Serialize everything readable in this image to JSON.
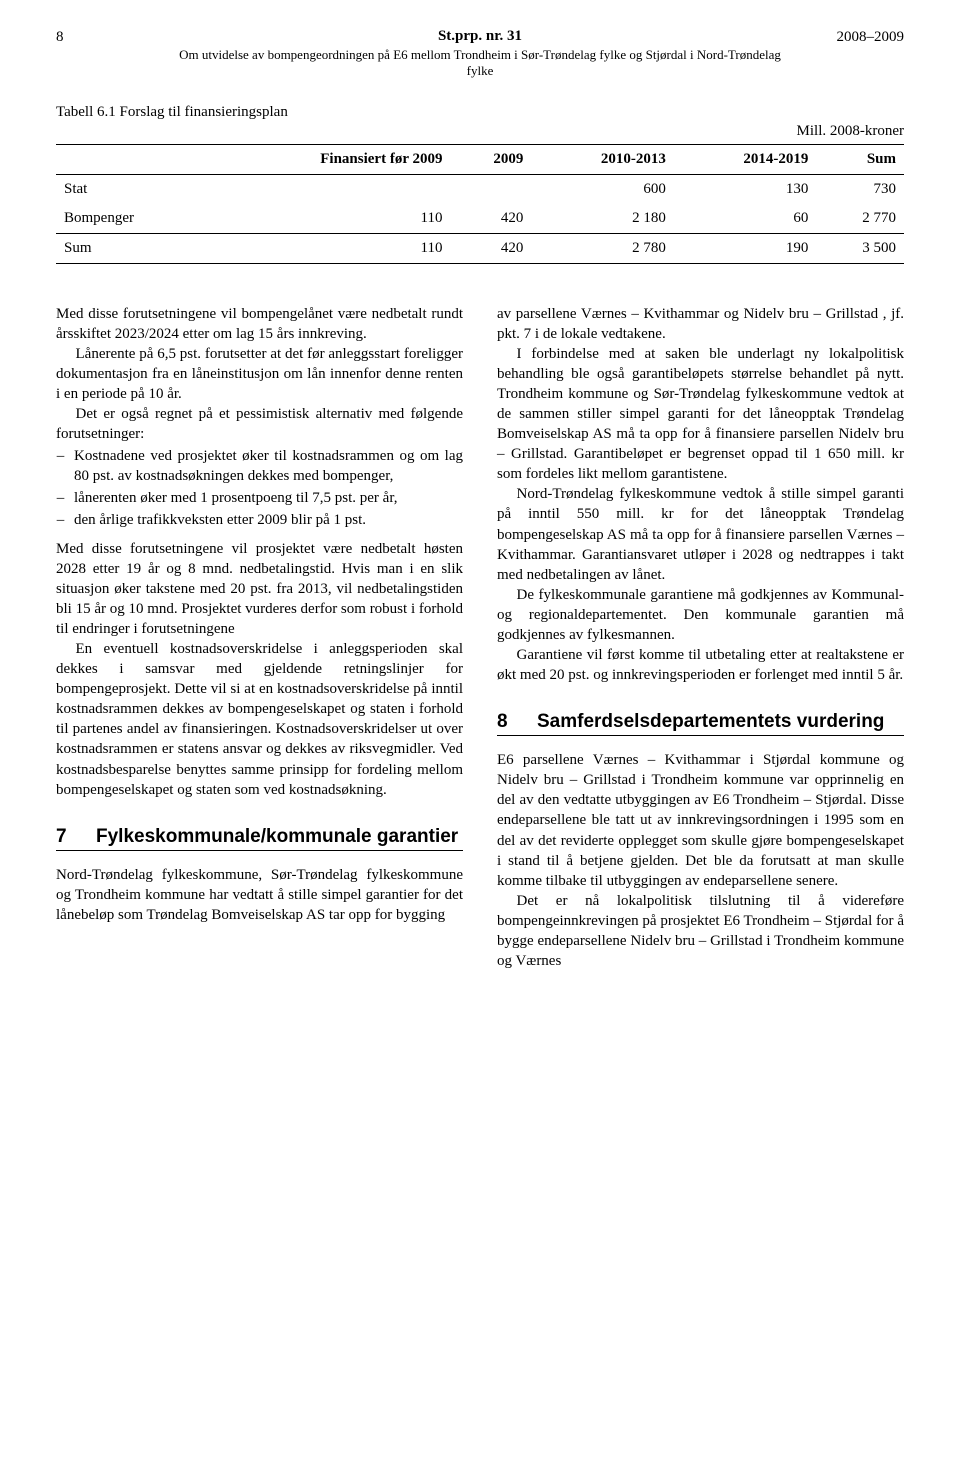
{
  "header": {
    "page_number": "8",
    "doc_ref": "St.prp. nr. 31",
    "years": "2008–2009",
    "subtitle": "Om utvidelse av bompengeordningen på E6 mellom Trondheim i Sør-Trøndelag fylke og Stjørdal i Nord-Trøndelag fylke"
  },
  "table": {
    "caption": "Tabell 6.1  Forslag til finansieringsplan",
    "unit": "Mill. 2008-kroner",
    "columns": [
      "",
      "Finansiert før 2009",
      "2009",
      "2010-2013",
      "2014-2019",
      "Sum"
    ],
    "rows": [
      [
        "Stat",
        "",
        "",
        "600",
        "130",
        "730"
      ],
      [
        "Bompenger",
        "110",
        "420",
        "2 180",
        "60",
        "2 770"
      ]
    ],
    "sum_row": [
      "Sum",
      "110",
      "420",
      "2 780",
      "190",
      "3 500"
    ],
    "font_size": 15,
    "border_color": "#000000"
  },
  "left_column": {
    "p1": "Med disse forutsetningene vil bompengelånet være nedbetalt rundt årsskiftet 2023/2024 etter om lag 15 års innkreving.",
    "p2": "Lånerente på 6,5 pst. forutsetter at det før anleggsstart foreligger dokumentasjon fra en låneinstitusjon om lån innenfor denne renten i en periode på 10 år.",
    "p3": "Det er også regnet på et pessimistisk alternativ med følgende forutsetninger:",
    "bullets": [
      "Kostnadene ved prosjektet øker til kostnadsrammen og om lag 80 pst. av kostnadsøkningen dekkes med bompenger,",
      "lånerenten øker med 1 prosentpoeng til 7,5 pst. per år,",
      "den årlige trafikkveksten etter 2009 blir på 1 pst."
    ],
    "p4": "Med disse forutsetningene vil prosjektet være nedbetalt høsten 2028 etter 19 år og 8 mnd. nedbetalingstid. Hvis man i en slik situasjon øker takstene med 20 pst. fra 2013, vil nedbetalingstiden bli 15 år og 10 mnd. Prosjektet vurderes derfor som robust i forhold til endringer i forutsetningene",
    "p5": "En eventuell kostnadsoverskridelse i anleggsperioden skal dekkes i samsvar med gjeldende retningslinjer for bompengeprosjekt. Dette vil si at en kostnadsoverskridelse på inntil kostnadsrammen dekkes av bompengeselskapet og staten i forhold til partenes andel av finansieringen. Kostnadsoverskridelser ut over kostnadsrammen er statens ansvar og dekkes av riksvegmidler. Ved kostnadsbesparelse benyttes samme prinsipp for fordeling mellom bompengeselskapet og staten som ved kostnadsøkning.",
    "section7_num": "7",
    "section7_title": "Fylkeskommunale/kommunale garantier",
    "p6": "Nord-Trøndelag fylkeskommune, Sør-Trøndelag fylkeskommune og Trondheim kommune har vedtatt å stille simpel garantier for det lånebeløp som Trøndelag Bomveiselskap AS tar opp for bygging"
  },
  "right_column": {
    "p1": "av parsellene Værnes – Kvithammar og Nidelv bru – Grillstad , jf. pkt. 7 i de lokale vedtakene.",
    "p2": "I forbindelse med at saken ble underlagt ny lokalpolitisk behandling ble også garantibeløpets størrelse behandlet på nytt. Trondheim kommune og Sør-Trøndelag fylkeskommune vedtok at de sammen stiller simpel garanti for det låneopptak Trøndelag Bomveiselskap AS må ta opp for å finansiere parsellen Nidelv bru – Grillstad. Garantibeløpet er begrenset oppad til 1 650 mill. kr som fordeles likt mellom garantistene.",
    "p3": "Nord-Trøndelag fylkeskommune vedtok å stille simpel garanti på inntil 550 mill. kr for det låneopptak Trøndelag bompengeselskap AS må ta opp for å finansiere parsellen Værnes – Kvithammar. Garantiansvaret utløper i 2028 og nedtrappes i takt med nedbetalingen av lånet.",
    "p4": "De fylkeskommunale garantiene må godkjennes av Kommunal- og regionaldepartementet. Den kommunale garantien må godkjennes av fylkesmannen.",
    "p5": "Garantiene vil først komme til utbetaling etter at realtakstene er økt med 20 pst. og innkrevingsperioden er forlenget med inntil 5 år.",
    "section8_num": "8",
    "section8_title": "Samferdselsdepartementets vurdering",
    "p6": "E6 parsellene Værnes – Kvithammar i Stjørdal kommune og Nidelv bru – Grillstad i Trondheim kommune var opprinnelig en del av den vedtatte utbyggingen av E6 Trondheim – Stjørdal. Disse endeparsellene ble tatt ut av innkrevingsordningen i 1995 som en del av det reviderte opplegget som skulle gjøre bompengeselskapet i stand til å betjene gjelden. Det ble da forutsatt at man skulle komme tilbake til utbyggingen av endeparsellene senere.",
    "p7": "Det er nå lokalpolitisk tilslutning til å videreføre bompengeinnkrevingen på prosjektet E6 Trondheim – Stjørdal for å bygge endeparsellene Nidelv bru – Grillstad i Trondheim kommune og Værnes"
  }
}
